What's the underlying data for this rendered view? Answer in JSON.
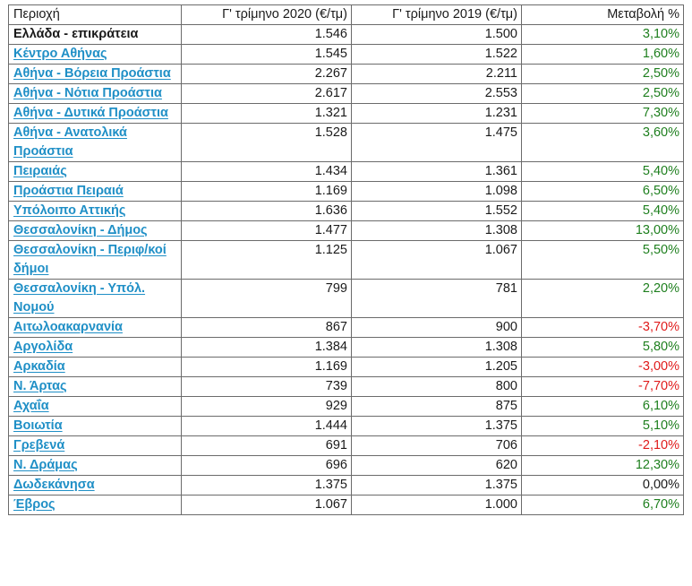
{
  "table": {
    "headers": {
      "region": "Περιοχή",
      "q3_2020": "Γ' τρίμηνο 2020 (€/τμ)",
      "q3_2019": "Γ' τρίμηνο 2019 (€/τμ)",
      "change": "Μεταβολή %"
    },
    "rows": [
      {
        "region": "Ελλάδα - επικράτεια",
        "link": false,
        "q3_2020": "1.546",
        "q3_2019": "1.500",
        "change": "3,10%",
        "trend": "pos"
      },
      {
        "region": "Κέντρο Αθήνας",
        "link": true,
        "q3_2020": "1.545",
        "q3_2019": "1.522",
        "change": "1,60%",
        "trend": "pos"
      },
      {
        "region": "Αθήνα - Βόρεια Προάστια",
        "link": true,
        "q3_2020": "2.267",
        "q3_2019": "2.211",
        "change": "2,50%",
        "trend": "pos"
      },
      {
        "region": "Αθήνα - Νότια Προάστια",
        "link": true,
        "q3_2020": "2.617",
        "q3_2019": "2.553",
        "change": "2,50%",
        "trend": "pos"
      },
      {
        "region": "Αθήνα - Δυτικά Προάστια",
        "link": true,
        "q3_2020": "1.321",
        "q3_2019": "1.231",
        "change": "7,30%",
        "trend": "pos"
      },
      {
        "region": "Αθήνα - Ανατολικά Προάστια",
        "link": true,
        "q3_2020": "1.528",
        "q3_2019": "1.475",
        "change": "3,60%",
        "trend": "pos"
      },
      {
        "region": "Πειραιάς",
        "link": true,
        "q3_2020": "1.434",
        "q3_2019": "1.361",
        "change": "5,40%",
        "trend": "pos"
      },
      {
        "region": "Προάστια Πειραιά",
        "link": true,
        "q3_2020": "1.169",
        "q3_2019": "1.098",
        "change": "6,50%",
        "trend": "pos"
      },
      {
        "region": "Υπόλοιπο Αττικής",
        "link": true,
        "q3_2020": "1.636",
        "q3_2019": "1.552",
        "change": "5,40%",
        "trend": "pos"
      },
      {
        "region": "Θεσσαλονίκη - Δήμος",
        "link": true,
        "q3_2020": "1.477",
        "q3_2019": "1.308",
        "change": "13,00%",
        "trend": "pos"
      },
      {
        "region": "Θεσσαλονίκη - Περιφ/κοί δήμοι",
        "link": true,
        "q3_2020": "1.125",
        "q3_2019": "1.067",
        "change": "5,50%",
        "trend": "pos"
      },
      {
        "region": "Θεσσαλονίκη - Υπόλ. Νομού",
        "link": true,
        "q3_2020": "799",
        "q3_2019": "781",
        "change": "2,20%",
        "trend": "pos"
      },
      {
        "region": "Αιτωλοακαρνανία",
        "link": true,
        "q3_2020": "867",
        "q3_2019": "900",
        "change": "-3,70%",
        "trend": "neg"
      },
      {
        "region": "Αργολίδα",
        "link": true,
        "q3_2020": "1.384",
        "q3_2019": "1.308",
        "change": "5,80%",
        "trend": "pos"
      },
      {
        "region": "Αρκαδία",
        "link": true,
        "q3_2020": "1.169",
        "q3_2019": "1.205",
        "change": "-3,00%",
        "trend": "neg"
      },
      {
        "region": "Ν. Άρτας",
        "link": true,
        "q3_2020": "739",
        "q3_2019": "800",
        "change": "-7,70%",
        "trend": "neg"
      },
      {
        "region": "Αχαΐα",
        "link": true,
        "q3_2020": "929",
        "q3_2019": "875",
        "change": "6,10%",
        "trend": "pos"
      },
      {
        "region": "Βοιωτία",
        "link": true,
        "q3_2020": "1.444",
        "q3_2019": "1.375",
        "change": "5,10%",
        "trend": "pos"
      },
      {
        "region": "Γρεβενά",
        "link": true,
        "q3_2020": "691",
        "q3_2019": "706",
        "change": "-2,10%",
        "trend": "neg"
      },
      {
        "region": "Ν. Δράμας",
        "link": true,
        "q3_2020": "696",
        "q3_2019": "620",
        "change": "12,30%",
        "trend": "pos"
      },
      {
        "region": "Δωδεκάνησα",
        "link": true,
        "q3_2020": "1.375",
        "q3_2019": "1.375",
        "change": "0,00%",
        "trend": "zero"
      },
      {
        "region": "Έβρος",
        "link": true,
        "q3_2020": "1.067",
        "q3_2019": "1.000",
        "change": "6,70%",
        "trend": "pos"
      }
    ]
  },
  "colors": {
    "link": "#1f8fc6",
    "positive": "#1e7f1e",
    "negative": "#e01b1b",
    "border": "#6b6b6b"
  }
}
